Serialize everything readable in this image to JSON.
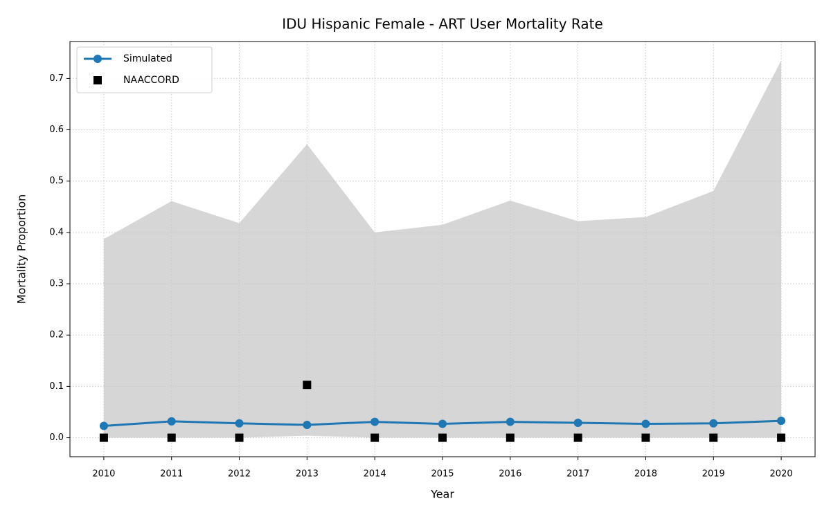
{
  "chart_data": {
    "type": "line",
    "title": "IDU Hispanic Female - ART User Mortality Rate",
    "x_label": "Year",
    "y_label": "Mortality Proportion",
    "x": [
      2010,
      2011,
      2012,
      2013,
      2014,
      2015,
      2016,
      2017,
      2018,
      2019,
      2020
    ],
    "series": [
      {
        "name": "Simulated",
        "color": "#1f77b4",
        "marker": "circle",
        "line": true,
        "values": [
          0.023,
          0.032,
          0.028,
          0.025,
          0.031,
          0.027,
          0.031,
          0.029,
          0.027,
          0.028,
          0.033
        ]
      },
      {
        "name": "NAACCORD",
        "color": "#000000",
        "marker": "square",
        "line": false,
        "values": [
          0,
          0,
          0,
          0.103,
          0,
          0,
          0,
          0,
          0,
          0,
          0
        ]
      }
    ],
    "band": {
      "color": "#d6d6d6",
      "lower": [
        0,
        0,
        0,
        0.004,
        0,
        0,
        0,
        0,
        0,
        0,
        0
      ],
      "upper": [
        0.387,
        0.461,
        0.418,
        0.572,
        0.4,
        0.415,
        0.462,
        0.422,
        0.43,
        0.481,
        0.735
      ]
    },
    "xlim": [
      2009.5,
      2020.5
    ],
    "ylim": [
      -0.037,
      0.772
    ],
    "xticks": [
      2010,
      2011,
      2012,
      2013,
      2014,
      2015,
      2016,
      2017,
      2018,
      2019,
      2020
    ],
    "yticks": [
      {
        "value": 0,
        "label": "0.0"
      },
      0.1,
      0.2,
      0.3,
      0.4,
      0.5,
      0.6,
      0.7
    ],
    "grid": true,
    "legend": "upper left"
  }
}
